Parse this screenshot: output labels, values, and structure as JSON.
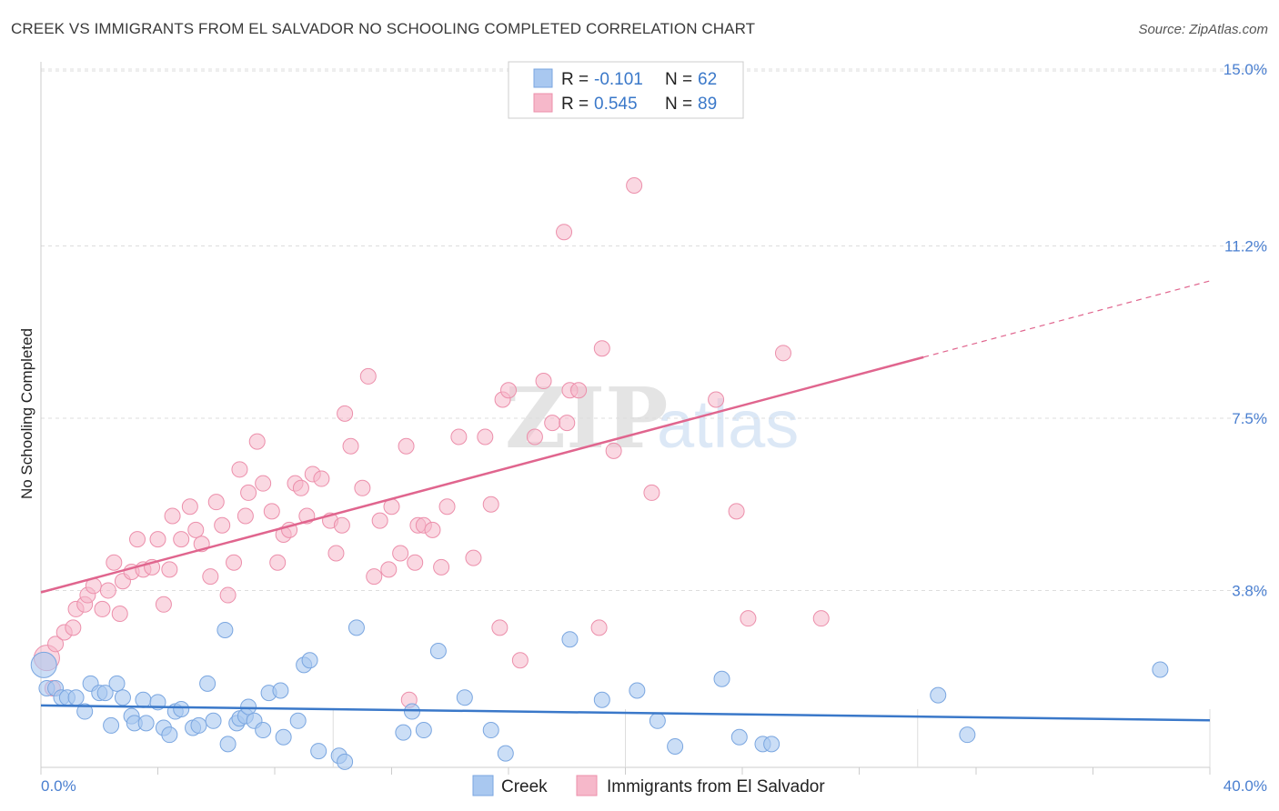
{
  "title": "CREEK VS IMMIGRANTS FROM EL SALVADOR NO SCHOOLING COMPLETED CORRELATION CHART",
  "source": "Source: ZipAtlas.com",
  "colors": {
    "blue_fill": "#a9c8f0",
    "blue_stroke": "#7aa6e0",
    "blue_line": "#3a78c9",
    "pink_fill": "#f6b8ca",
    "pink_stroke": "#ec8fab",
    "pink_line": "#e0658e",
    "tick_text": "#4a7fd0",
    "grid": "#dddddd"
  },
  "legend": {
    "rows": [
      {
        "r_label": "R =",
        "r_value": "-0.101",
        "n_label": "N =",
        "n_value": "62"
      },
      {
        "r_label": "R =",
        "r_value": "0.545",
        "n_label": "N =",
        "n_value": "89"
      }
    ]
  },
  "chart_data": {
    "type": "scatter",
    "title": "CREEK VS IMMIGRANTS FROM EL SALVADOR NO SCHOOLING COMPLETED CORRELATION CHART",
    "xlabel": "",
    "ylabel": "No Schooling Completed",
    "xlim": [
      0,
      40
    ],
    "ylim": [
      0,
      15.5
    ],
    "x_ticks": [
      {
        "value": 0,
        "label": "0.0%"
      },
      {
        "value": 40,
        "label": "40.0%"
      }
    ],
    "y_ticks": [
      {
        "value": 3.8,
        "label": "3.8%"
      },
      {
        "value": 7.5,
        "label": "7.5%"
      },
      {
        "value": 11.2,
        "label": "11.2%"
      },
      {
        "value": 15.0,
        "label": "15.0%"
      }
    ],
    "grid": true,
    "legend_position": "top-center",
    "watermark": "ZIPatlas",
    "series": [
      {
        "name": "Creek",
        "color": "#a9c8f0",
        "trend": {
          "x0": 0,
          "y0": 1.33,
          "x1": 40,
          "y1": 1.01,
          "solid_until": 40
        },
        "points": [
          [
            0.1,
            2.2,
            1
          ],
          [
            0.2,
            1.7,
            0
          ],
          [
            0.5,
            1.7,
            0
          ],
          [
            0.7,
            1.5,
            0
          ],
          [
            0.9,
            1.5,
            0
          ],
          [
            1.2,
            1.5,
            0
          ],
          [
            1.5,
            1.2,
            0
          ],
          [
            1.7,
            1.8,
            0
          ],
          [
            2.0,
            1.6,
            0
          ],
          [
            2.2,
            1.6,
            0
          ],
          [
            2.4,
            0.9,
            0
          ],
          [
            2.6,
            1.8,
            0
          ],
          [
            2.8,
            1.5,
            0
          ],
          [
            3.1,
            1.1,
            0
          ],
          [
            3.2,
            0.95,
            0
          ],
          [
            3.5,
            1.45,
            0
          ],
          [
            3.6,
            0.95,
            0
          ],
          [
            4.0,
            1.4,
            0
          ],
          [
            4.2,
            0.85,
            0
          ],
          [
            4.4,
            0.7,
            0
          ],
          [
            4.6,
            1.2,
            0
          ],
          [
            4.8,
            1.25,
            0
          ],
          [
            5.2,
            0.85,
            0
          ],
          [
            5.4,
            0.9,
            0
          ],
          [
            5.7,
            1.8,
            0
          ],
          [
            5.9,
            1.0,
            0
          ],
          [
            6.3,
            2.95,
            0
          ],
          [
            6.4,
            0.5,
            0
          ],
          [
            6.7,
            0.95,
            0
          ],
          [
            6.8,
            1.05,
            0
          ],
          [
            7.0,
            1.1,
            0
          ],
          [
            7.1,
            1.3,
            0
          ],
          [
            7.3,
            1.0,
            0
          ],
          [
            7.6,
            0.8,
            0
          ],
          [
            7.8,
            1.6,
            0
          ],
          [
            8.2,
            1.65,
            0
          ],
          [
            8.3,
            0.65,
            0
          ],
          [
            8.8,
            1.0,
            0
          ],
          [
            9.0,
            2.2,
            0
          ],
          [
            9.2,
            2.3,
            0
          ],
          [
            9.5,
            0.35,
            0
          ],
          [
            10.2,
            0.25,
            0
          ],
          [
            10.4,
            0.12,
            0
          ],
          [
            10.8,
            3.0,
            0
          ],
          [
            12.4,
            0.75,
            0
          ],
          [
            12.7,
            1.2,
            0
          ],
          [
            13.1,
            0.8,
            0
          ],
          [
            13.6,
            2.5,
            0
          ],
          [
            14.5,
            1.5,
            0
          ],
          [
            15.4,
            0.8,
            0
          ],
          [
            15.9,
            0.3,
            0
          ],
          [
            18.1,
            2.75,
            0
          ],
          [
            19.2,
            1.45,
            0
          ],
          [
            20.4,
            1.65,
            0
          ],
          [
            21.1,
            1.0,
            0
          ],
          [
            21.7,
            0.45,
            0
          ],
          [
            23.3,
            1.9,
            0
          ],
          [
            23.9,
            0.65,
            0
          ],
          [
            24.7,
            0.5,
            0
          ],
          [
            25.0,
            0.5,
            0
          ],
          [
            30.7,
            1.55,
            0
          ],
          [
            31.7,
            0.7,
            0
          ],
          [
            38.3,
            2.1,
            0
          ]
        ]
      },
      {
        "name": "Immigrants from El Salvador",
        "color": "#f6b8ca",
        "trend": {
          "x0": 0,
          "y0": 3.76,
          "x1": 40,
          "y1": 10.45,
          "solid_until": 30.2
        },
        "points": [
          [
            0.2,
            2.35,
            1
          ],
          [
            0.4,
            1.7,
            0
          ],
          [
            0.5,
            2.65,
            0
          ],
          [
            0.8,
            2.9,
            0
          ],
          [
            1.1,
            3.0,
            0
          ],
          [
            1.2,
            3.4,
            0
          ],
          [
            1.5,
            3.5,
            0
          ],
          [
            1.6,
            3.7,
            0
          ],
          [
            1.8,
            3.9,
            0
          ],
          [
            2.1,
            3.4,
            0
          ],
          [
            2.3,
            3.8,
            0
          ],
          [
            2.5,
            4.4,
            0
          ],
          [
            2.7,
            3.3,
            0
          ],
          [
            2.8,
            4.0,
            0
          ],
          [
            3.1,
            4.2,
            0
          ],
          [
            3.3,
            4.9,
            0
          ],
          [
            3.5,
            4.25,
            0
          ],
          [
            3.8,
            4.3,
            0
          ],
          [
            4.0,
            4.9,
            0
          ],
          [
            4.2,
            3.5,
            0
          ],
          [
            4.4,
            4.25,
            0
          ],
          [
            4.5,
            5.4,
            0
          ],
          [
            4.8,
            4.9,
            0
          ],
          [
            5.1,
            5.6,
            0
          ],
          [
            5.3,
            5.1,
            0
          ],
          [
            5.5,
            4.8,
            0
          ],
          [
            5.8,
            4.1,
            0
          ],
          [
            6.0,
            5.7,
            0
          ],
          [
            6.2,
            5.2,
            0
          ],
          [
            6.4,
            3.7,
            0
          ],
          [
            6.6,
            4.4,
            0
          ],
          [
            6.8,
            6.4,
            0
          ],
          [
            7.0,
            5.4,
            0
          ],
          [
            7.1,
            5.9,
            0
          ],
          [
            7.4,
            7.0,
            0
          ],
          [
            7.6,
            6.1,
            0
          ],
          [
            7.9,
            5.5,
            0
          ],
          [
            8.1,
            4.4,
            0
          ],
          [
            8.3,
            5.0,
            0
          ],
          [
            8.5,
            5.1,
            0
          ],
          [
            8.7,
            6.1,
            0
          ],
          [
            8.9,
            6.0,
            0
          ],
          [
            9.1,
            5.4,
            0
          ],
          [
            9.3,
            6.3,
            0
          ],
          [
            9.6,
            6.2,
            0
          ],
          [
            9.9,
            5.3,
            0
          ],
          [
            10.1,
            4.6,
            0
          ],
          [
            10.3,
            5.2,
            0
          ],
          [
            10.4,
            7.6,
            0
          ],
          [
            10.6,
            6.9,
            0
          ],
          [
            11.0,
            6.0,
            0
          ],
          [
            11.2,
            8.4,
            0
          ],
          [
            11.4,
            4.1,
            0
          ],
          [
            11.6,
            5.3,
            0
          ],
          [
            11.9,
            4.25,
            0
          ],
          [
            12.0,
            5.6,
            0
          ],
          [
            12.3,
            4.6,
            0
          ],
          [
            12.5,
            6.9,
            0
          ],
          [
            12.6,
            1.45,
            0
          ],
          [
            12.8,
            4.4,
            0
          ],
          [
            12.9,
            5.2,
            0
          ],
          [
            13.1,
            5.2,
            0
          ],
          [
            13.4,
            5.1,
            0
          ],
          [
            13.7,
            4.3,
            0
          ],
          [
            13.9,
            5.6,
            0
          ],
          [
            14.3,
            7.1,
            0
          ],
          [
            14.8,
            4.5,
            0
          ],
          [
            15.2,
            7.1,
            0
          ],
          [
            15.4,
            5.65,
            0
          ],
          [
            15.7,
            3.0,
            0
          ],
          [
            15.8,
            7.9,
            0
          ],
          [
            16.0,
            8.1,
            0
          ],
          [
            16.4,
            2.3,
            0
          ],
          [
            16.9,
            7.1,
            0
          ],
          [
            17.2,
            8.3,
            0
          ],
          [
            17.5,
            7.4,
            0
          ],
          [
            17.9,
            11.5,
            0
          ],
          [
            18.0,
            7.4,
            0
          ],
          [
            18.1,
            8.1,
            0
          ],
          [
            18.4,
            8.1,
            0
          ],
          [
            19.1,
            3.0,
            0
          ],
          [
            19.2,
            9.0,
            0
          ],
          [
            19.6,
            6.8,
            0
          ],
          [
            20.3,
            12.5,
            0
          ],
          [
            20.9,
            5.9,
            0
          ],
          [
            23.1,
            7.9,
            0
          ],
          [
            23.8,
            5.5,
            0
          ],
          [
            24.2,
            3.2,
            0
          ],
          [
            25.4,
            8.9,
            0
          ],
          [
            26.7,
            3.2,
            0
          ]
        ]
      }
    ]
  },
  "bottom_legend": [
    "Creek",
    "Immigrants from El Salvador"
  ],
  "axis": {
    "ylabel": "No Schooling Completed"
  }
}
